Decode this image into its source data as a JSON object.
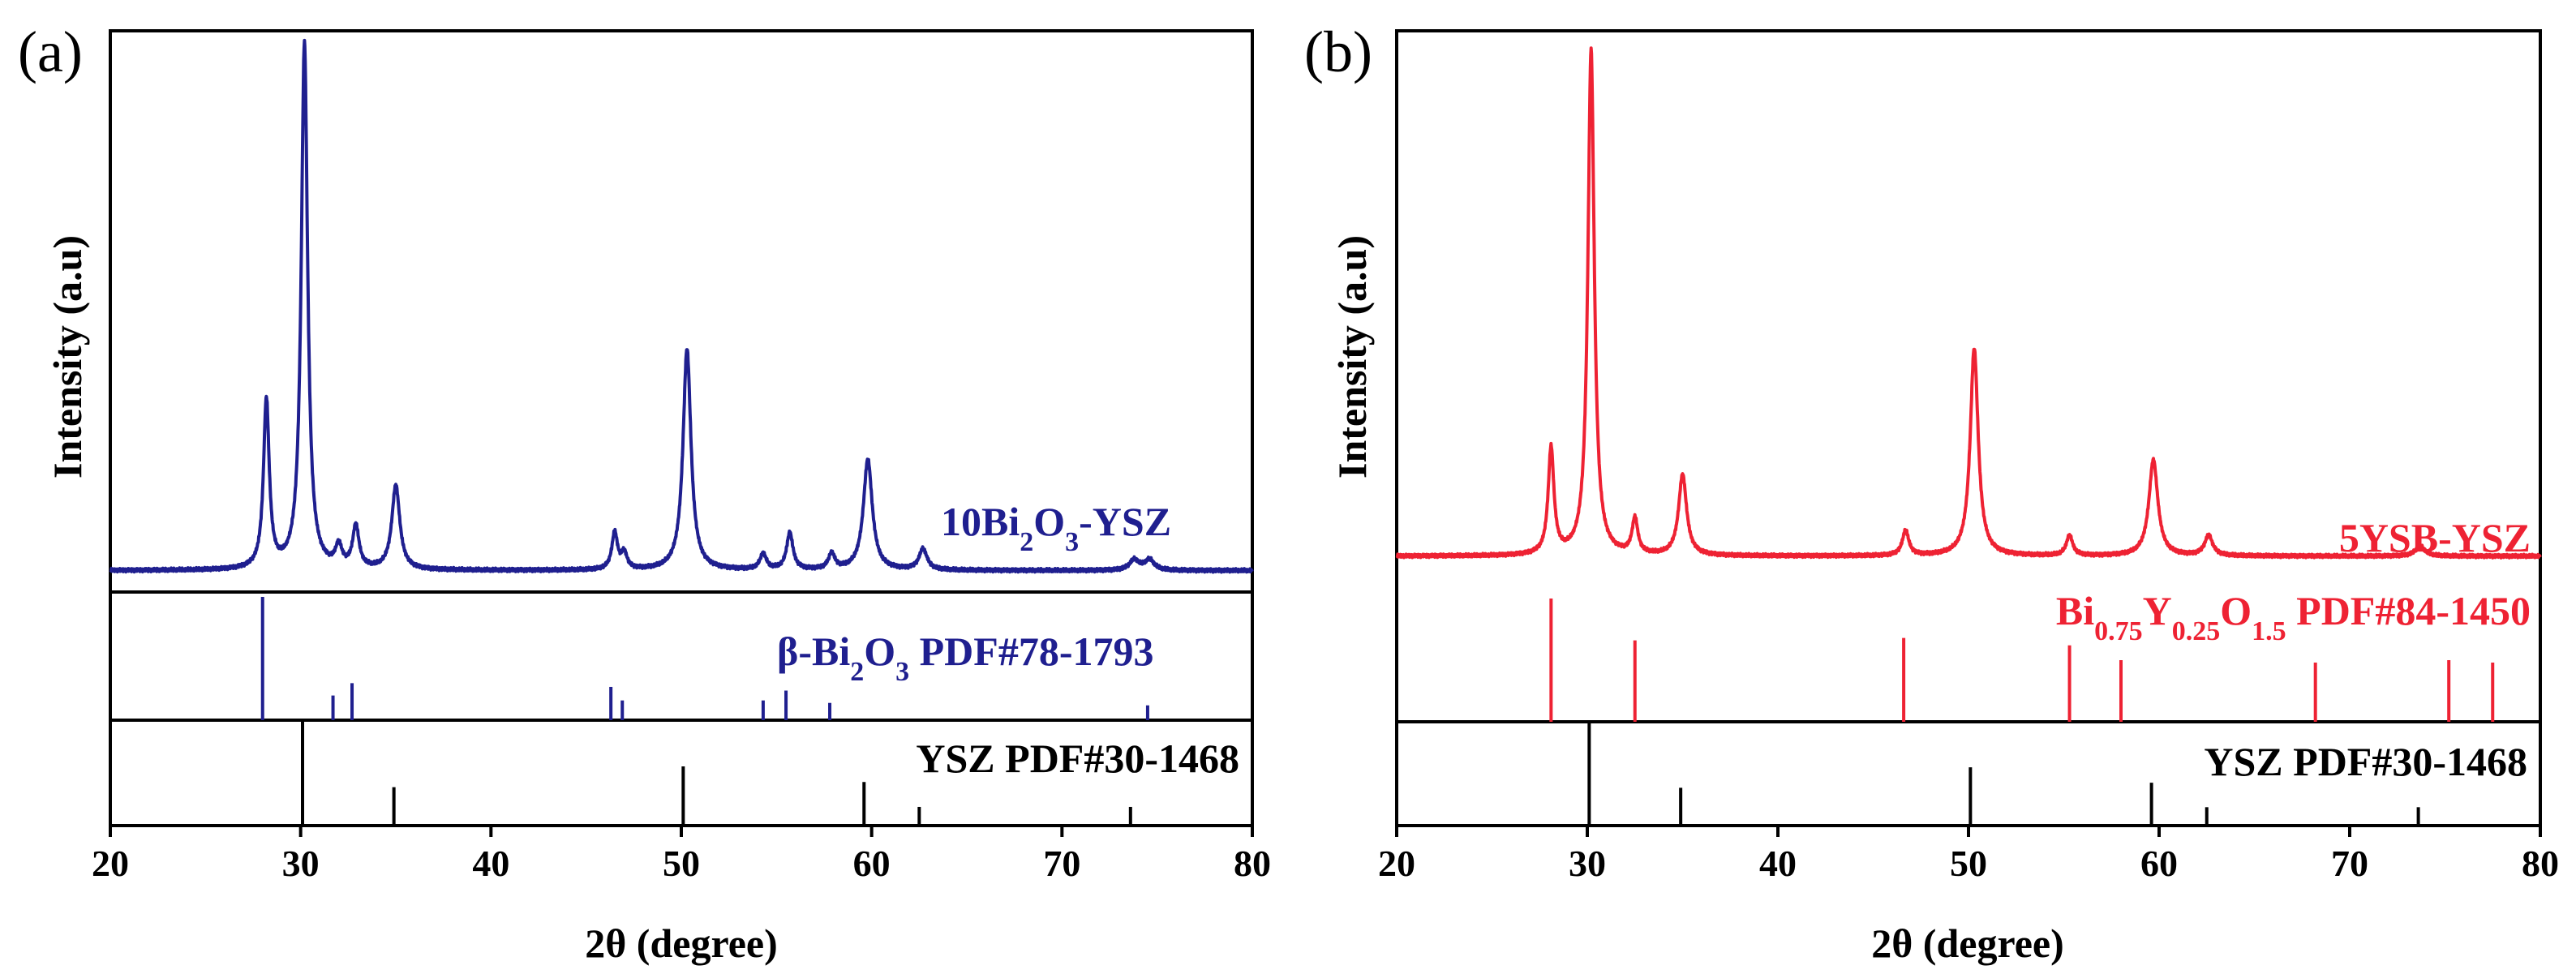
{
  "chart_data": [
    {
      "type": "line",
      "panel_label": "(a)",
      "xlabel": "2θ (degree)",
      "ylabel": "Intensity (a.u)",
      "xlim": [
        20,
        80
      ],
      "xticks": [
        20,
        30,
        40,
        50,
        60,
        70,
        80
      ],
      "xtick_labels": [
        "20",
        "30",
        "40",
        "50",
        "60",
        "70",
        "80"
      ],
      "line_color": "#1f1f8f",
      "pattern": {
        "name": "10Bi2O3-YSZ",
        "label_main": "10Bi",
        "label_sub": "2",
        "label_tail": "O",
        "label_sub2": "3",
        "label_end": "-YSZ",
        "baseline": 1,
        "peaks": [
          {
            "x": 28.2,
            "h": 32,
            "w": 0.18
          },
          {
            "x": 30.2,
            "h": 100,
            "w": 0.2
          },
          {
            "x": 32.0,
            "h": 4,
            "w": 0.2
          },
          {
            "x": 32.9,
            "h": 8,
            "w": 0.2
          },
          {
            "x": 35.0,
            "h": 16,
            "w": 0.25
          },
          {
            "x": 46.5,
            "h": 7,
            "w": 0.18
          },
          {
            "x": 47.0,
            "h": 3,
            "w": 0.18
          },
          {
            "x": 50.3,
            "h": 42,
            "w": 0.25
          },
          {
            "x": 54.3,
            "h": 3,
            "w": 0.2
          },
          {
            "x": 55.7,
            "h": 7,
            "w": 0.2
          },
          {
            "x": 57.9,
            "h": 3,
            "w": 0.2
          },
          {
            "x": 59.8,
            "h": 21,
            "w": 0.28
          },
          {
            "x": 62.7,
            "h": 4,
            "w": 0.25
          },
          {
            "x": 73.8,
            "h": 2,
            "w": 0.3
          },
          {
            "x": 74.6,
            "h": 2,
            "w": 0.3
          }
        ]
      },
      "reference_1": {
        "name": "β-Bi2O3 PDF#78-1793",
        "label_main": "β-Bi",
        "label_sub": "2",
        "label_tail": "O",
        "label_sub2": "3",
        "label_end": " PDF#78-1793",
        "color": "#1f1f8f",
        "sticks": [
          {
            "x": 28.0,
            "h": 100
          },
          {
            "x": 31.7,
            "h": 20
          },
          {
            "x": 32.7,
            "h": 30
          },
          {
            "x": 46.3,
            "h": 27
          },
          {
            "x": 46.9,
            "h": 16
          },
          {
            "x": 54.3,
            "h": 16
          },
          {
            "x": 55.5,
            "h": 24
          },
          {
            "x": 57.8,
            "h": 14
          },
          {
            "x": 74.5,
            "h": 12
          }
        ]
      },
      "reference_2": {
        "name": "YSZ PDF#30-1468",
        "color": "#000000",
        "sticks": [
          {
            "x": 30.1,
            "h": 100
          },
          {
            "x": 34.9,
            "h": 37
          },
          {
            "x": 50.1,
            "h": 57
          },
          {
            "x": 59.6,
            "h": 42
          },
          {
            "x": 62.5,
            "h": 18
          },
          {
            "x": 73.6,
            "h": 18
          }
        ]
      }
    },
    {
      "type": "line",
      "panel_label": "(b)",
      "xlabel": "2θ (degree)",
      "ylabel": "Intensity (a.u)",
      "xlim": [
        20,
        80
      ],
      "xticks": [
        20,
        30,
        40,
        50,
        60,
        70,
        80
      ],
      "xtick_labels": [
        "20",
        "30",
        "40",
        "50",
        "60",
        "70",
        "80"
      ],
      "line_color": "#ee2233",
      "pattern": {
        "name": "5YSB-YSZ",
        "baseline": 1,
        "peaks": [
          {
            "x": 28.1,
            "h": 21,
            "w": 0.18
          },
          {
            "x": 30.2,
            "h": 100,
            "w": 0.2
          },
          {
            "x": 32.5,
            "h": 7,
            "w": 0.18
          },
          {
            "x": 35.0,
            "h": 16,
            "w": 0.25
          },
          {
            "x": 46.7,
            "h": 5,
            "w": 0.2
          },
          {
            "x": 50.3,
            "h": 41,
            "w": 0.25
          },
          {
            "x": 55.3,
            "h": 4,
            "w": 0.2
          },
          {
            "x": 59.7,
            "h": 19,
            "w": 0.28
          },
          {
            "x": 62.6,
            "h": 4,
            "w": 0.25
          },
          {
            "x": 73.7,
            "h": 2,
            "w": 0.3
          }
        ]
      },
      "reference_1": {
        "name": "Bi0.75Y0.25O1.5 PDF#84-1450",
        "label_a": "Bi",
        "label_a_sub": "0.75",
        "label_b": "Y",
        "label_b_sub": "0.25",
        "label_c": "O",
        "label_c_sub": "1.5",
        "label_end": " PDF#84-1450",
        "color": "#ee2233",
        "sticks": [
          {
            "x": 28.1,
            "h": 100
          },
          {
            "x": 32.5,
            "h": 66
          },
          {
            "x": 46.6,
            "h": 68
          },
          {
            "x": 55.3,
            "h": 62
          },
          {
            "x": 58.0,
            "h": 50
          },
          {
            "x": 68.2,
            "h": 48
          },
          {
            "x": 75.2,
            "h": 50
          },
          {
            "x": 77.5,
            "h": 48
          }
        ]
      },
      "reference_2": {
        "name": "YSZ PDF#30-1468",
        "color": "#000000",
        "sticks": [
          {
            "x": 30.1,
            "h": 100
          },
          {
            "x": 34.9,
            "h": 37
          },
          {
            "x": 50.1,
            "h": 57
          },
          {
            "x": 59.6,
            "h": 42
          },
          {
            "x": 62.5,
            "h": 18
          },
          {
            "x": 73.6,
            "h": 18
          }
        ]
      }
    }
  ]
}
